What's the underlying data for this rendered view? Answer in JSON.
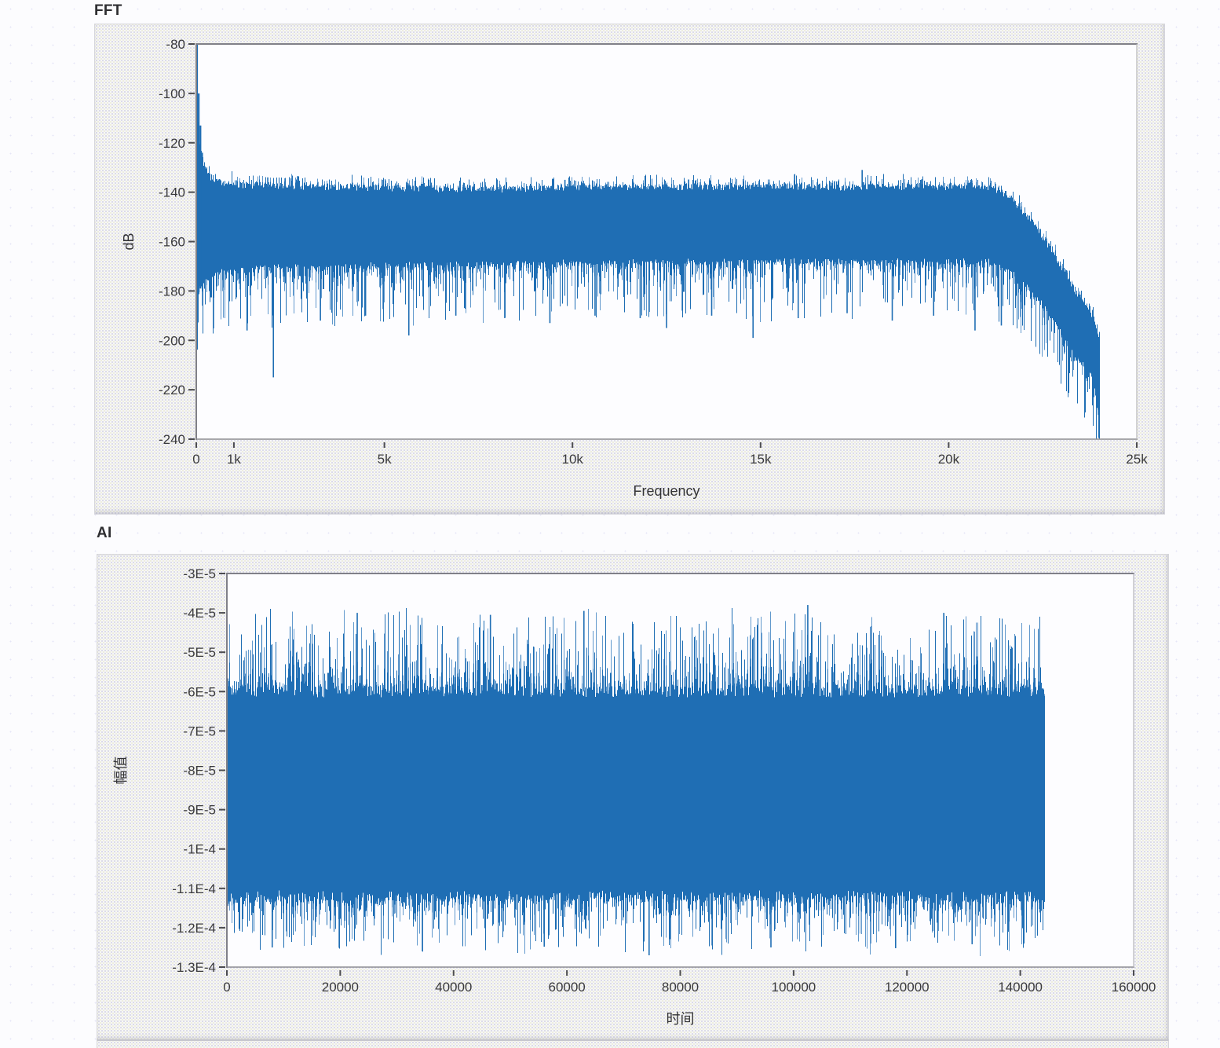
{
  "chart_data": [
    {
      "id": "fft",
      "type": "line",
      "title": "FFT",
      "xlabel": "Frequency",
      "ylabel": "dB",
      "xlim": [
        0,
        25000
      ],
      "ylim": [
        -240,
        -80
      ],
      "grid": false,
      "legend": "none",
      "line_color": "#1f6eb4",
      "line_color_light": "#6299cd",
      "xticks": [
        {
          "v": 0,
          "label": "0"
        },
        {
          "v": 1000,
          "label": "1k"
        },
        {
          "v": 5000,
          "label": "5k"
        },
        {
          "v": 10000,
          "label": "10k"
        },
        {
          "v": 15000,
          "label": "15k"
        },
        {
          "v": 20000,
          "label": "20k"
        },
        {
          "v": 25000,
          "label": "25k"
        }
      ],
      "yticks": [
        {
          "v": -80,
          "label": "-80"
        },
        {
          "v": -100,
          "label": "-100"
        },
        {
          "v": -120,
          "label": "-120"
        },
        {
          "v": -140,
          "label": "-140"
        },
        {
          "v": -160,
          "label": "-160"
        },
        {
          "v": -180,
          "label": "-180"
        },
        {
          "v": -200,
          "label": "-200"
        },
        {
          "v": -220,
          "label": "-220"
        },
        {
          "v": -240,
          "label": "-240"
        }
      ],
      "x_data_end": 24000,
      "band_envelope": [
        [
          0,
          -108,
          -182
        ],
        [
          120,
          -126,
          -178
        ],
        [
          350,
          -134,
          -174
        ],
        [
          800,
          -137,
          -171
        ],
        [
          3000,
          -138,
          -170
        ],
        [
          8000,
          -139,
          -169
        ],
        [
          12000,
          -138,
          -168
        ],
        [
          17000,
          -138,
          -168
        ],
        [
          21000,
          -138,
          -168
        ],
        [
          21600,
          -142,
          -171
        ],
        [
          22200,
          -152,
          -180
        ],
        [
          22700,
          -163,
          -190
        ],
        [
          23100,
          -173,
          -199
        ],
        [
          23400,
          -181,
          -207
        ],
        [
          23650,
          -186,
          -211
        ],
        [
          23800,
          -190,
          -214
        ],
        [
          23900,
          -194,
          -222
        ],
        [
          24000,
          -199,
          -230
        ]
      ],
      "noise": {
        "seed": 90210,
        "core_jitter": 1.3,
        "top_extra": 4.5,
        "top_pow": 3,
        "bottom_extra": 24,
        "bottom_pow": 3.4,
        "light_prob": 0.35
      },
      "dc_spike": [
        [
          0,
          -80
        ],
        [
          45,
          -100
        ],
        [
          90,
          -113
        ],
        [
          135,
          -124
        ]
      ],
      "peaks_up": [
        [
          1900,
          -134
        ],
        [
          9800,
          -135
        ],
        [
          17700,
          -131
        ]
      ],
      "spikes_down": [
        [
          1350,
          -196
        ],
        [
          2050,
          -215
        ],
        [
          3300,
          -192
        ],
        [
          4500,
          -190
        ],
        [
          5650,
          -198
        ],
        [
          6900,
          -190
        ],
        [
          8200,
          -191
        ],
        [
          9400,
          -193
        ],
        [
          10600,
          -190
        ],
        [
          11800,
          -191
        ],
        [
          12500,
          -195
        ],
        [
          13700,
          -190
        ],
        [
          14800,
          -199
        ],
        [
          16000,
          -191
        ],
        [
          17300,
          -189
        ],
        [
          18500,
          -192
        ],
        [
          19600,
          -190
        ],
        [
          20700,
          -196
        ],
        [
          21400,
          -194
        ]
      ]
    },
    {
      "id": "ai",
      "type": "line",
      "title": "AI",
      "xlabel": "时间",
      "ylabel": "幅值",
      "xlim": [
        0,
        160000
      ],
      "ylim": [
        -0.00013,
        -3e-05
      ],
      "grid": false,
      "legend": "none",
      "line_color": "#1f6eb4",
      "line_color_light": "#6299cd",
      "xticks": [
        {
          "v": 0,
          "label": "0"
        },
        {
          "v": 20000,
          "label": "20000"
        },
        {
          "v": 40000,
          "label": "40000"
        },
        {
          "v": 60000,
          "label": "60000"
        },
        {
          "v": 80000,
          "label": "80000"
        },
        {
          "v": 100000,
          "label": "100000"
        },
        {
          "v": 120000,
          "label": "120000"
        },
        {
          "v": 140000,
          "label": "140000"
        },
        {
          "v": 160000,
          "label": "160000"
        }
      ],
      "yticks": [
        {
          "v": -3e-05,
          "label": "-3E-5"
        },
        {
          "v": -4e-05,
          "label": "-4E-5"
        },
        {
          "v": -5e-05,
          "label": "-5E-5"
        },
        {
          "v": -6e-05,
          "label": "-6E-5"
        },
        {
          "v": -7e-05,
          "label": "-7E-5"
        },
        {
          "v": -8e-05,
          "label": "-8E-5"
        },
        {
          "v": -9e-05,
          "label": "-9E-5"
        },
        {
          "v": -0.0001,
          "label": "-1E-4"
        },
        {
          "v": -0.00011,
          "label": "-1.1E-4"
        },
        {
          "v": -0.00012,
          "label": "-1.2E-4"
        },
        {
          "v": -0.00013,
          "label": "-1.3E-4"
        }
      ],
      "x_data_end": 144300,
      "band_envelope": [
        [
          0,
          -6e-05,
          -0.000112
        ],
        [
          144300,
          -6e-05,
          -0.000112
        ]
      ],
      "noise": {
        "seed": 1337,
        "core_jitter": 1.5e-06,
        "top_extra": 2e-05,
        "top_pow": 2.8,
        "bottom_extra": 1.4e-05,
        "bottom_pow": 2.8,
        "light_prob": 0.35
      },
      "peaks_up": [
        [
          23000,
          -4e-05
        ],
        [
          46500,
          -4.05e-05
        ],
        [
          63000,
          -3.95e-05
        ],
        [
          102500,
          -3.8e-05
        ],
        [
          126500,
          -4e-05
        ]
      ],
      "spikes_down": [
        [
          8000,
          -0.000125
        ],
        [
          34500,
          -0.000126
        ],
        [
          56000,
          -0.0001248
        ],
        [
          74500,
          -0.000127
        ],
        [
          96000,
          -0.000125
        ],
        [
          118000,
          -0.0001252
        ],
        [
          131500,
          -0.0001242
        ]
      ]
    }
  ]
}
